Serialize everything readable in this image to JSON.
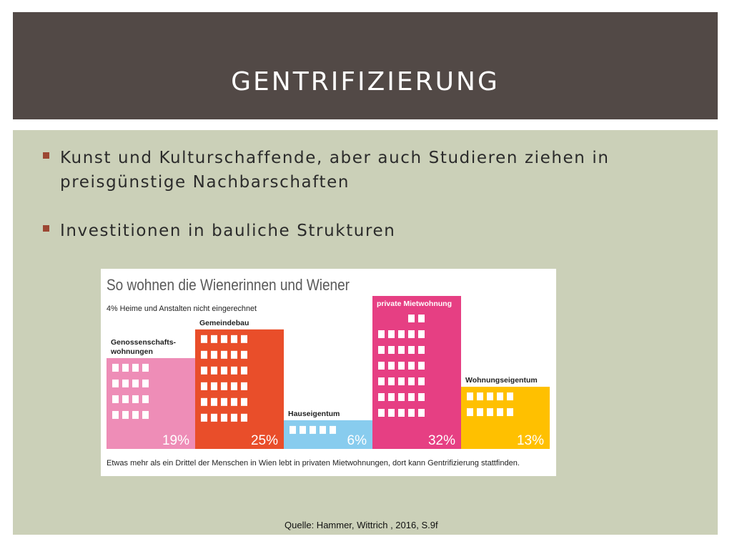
{
  "slide": {
    "title": "GENTRIFIZIERUNG",
    "bullets": [
      "Kunst und Kulturschaffende, aber auch Studieren ziehen in preisgünstige Nachbarschaften",
      "Investitionen in bauliche Strukturen"
    ],
    "source": "Quelle: Hammer, Wittrich , 2016, S.9f",
    "colors": {
      "header": "#524946",
      "panel": "#cbd0b8",
      "bullet_marker": "#9c4733"
    }
  },
  "chart_data": {
    "type": "bar",
    "title": "So wohnen die Wienerinnen und Wiener",
    "subtitle": "4% Heime und Anstalten nicht eingerechnet",
    "caption": "Etwas mehr als ein Drittel der Menschen in Wien lebt in privaten Mietwohnungen, dort kann Gentrifizierung stattfinden.",
    "unit": "%",
    "ylim": [
      0,
      32
    ],
    "categories": [
      "Genossenschafts-wohnungen",
      "Gemeindebau",
      "Hauseigentum",
      "private Mietwohnung",
      "Wohnungseigentum"
    ],
    "values": [
      19,
      25,
      6,
      32,
      13
    ],
    "value_labels": [
      "19%",
      "25%",
      "6%",
      "32%",
      "13%"
    ],
    "colors": [
      "#ee8db7",
      "#e94e2a",
      "#88ccee",
      "#e63f83",
      "#ffc000"
    ]
  }
}
